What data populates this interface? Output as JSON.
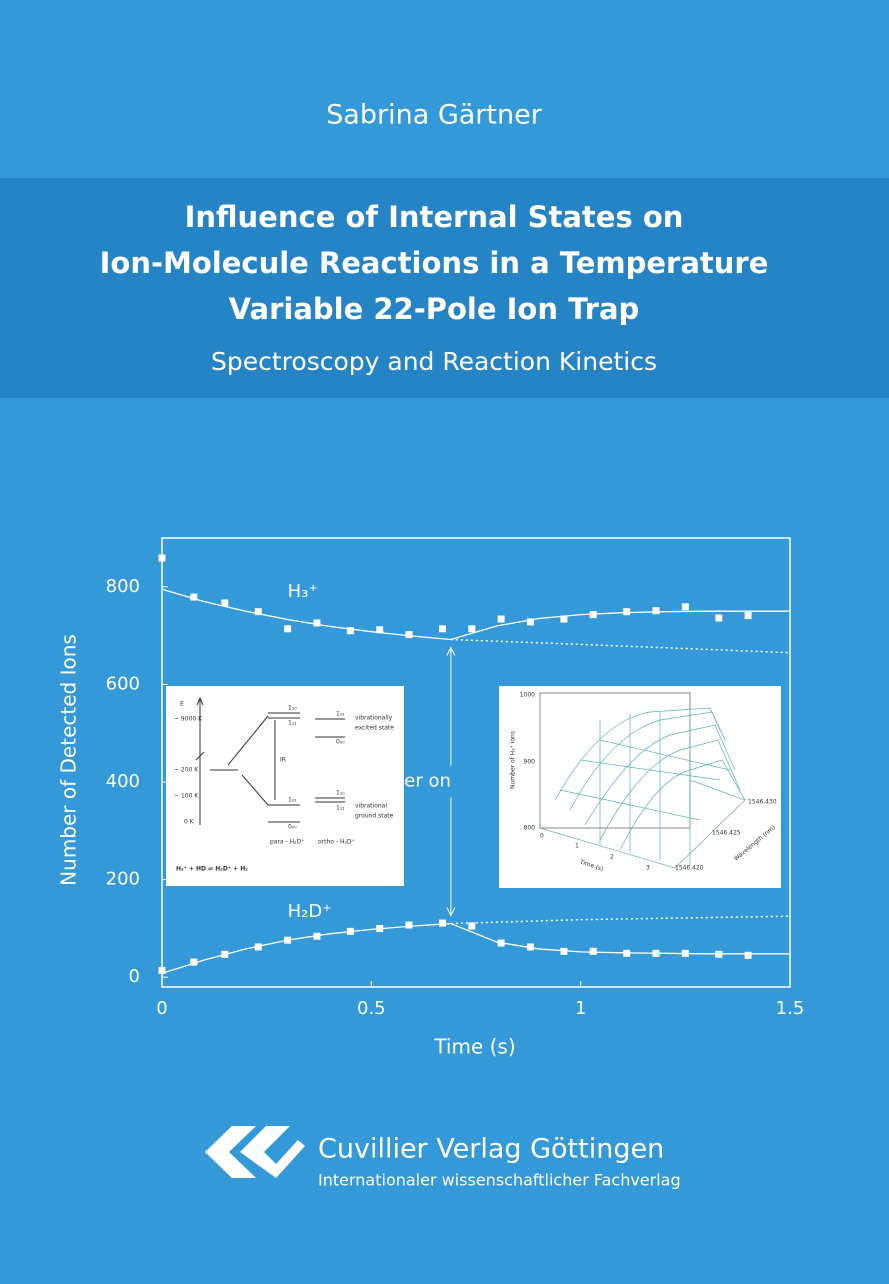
{
  "author": "Sabrina Gärtner",
  "title": [
    "Influence of Internal States on",
    "Ion-Molecule Reactions in a Temperature",
    "Variable 22-Pole Ion Trap"
  ],
  "subtitle": "Spectroscopy and Reaction Kinetics",
  "chart_data": {
    "type": "scatter",
    "xlabel": "Time (s)",
    "ylabel": "Number of Detected Ions",
    "xlim": [
      0,
      1.5
    ],
    "ylim": [
      -20,
      900
    ],
    "xticks": [
      0,
      0.5,
      1,
      1.5
    ],
    "yticks": [
      0,
      200,
      400,
      600,
      800
    ],
    "series": [
      {
        "name": "H₃⁺",
        "color": "#ffffff",
        "x": [
          0,
          0.076,
          0.15,
          0.23,
          0.3,
          0.37,
          0.45,
          0.52,
          0.59,
          0.67,
          0.74,
          0.81,
          0.88,
          0.96,
          1.03,
          1.11,
          1.18,
          1.25,
          1.33,
          1.4
        ],
        "values": [
          859,
          779,
          767,
          749,
          714,
          726,
          710,
          712,
          702,
          714,
          714,
          734,
          728,
          734,
          743,
          749,
          751,
          759,
          736,
          741
        ]
      },
      {
        "name": "H₂D⁺",
        "color": "#ffffff",
        "x": [
          0,
          0.076,
          0.15,
          0.23,
          0.3,
          0.37,
          0.45,
          0.52,
          0.59,
          0.67,
          0.74,
          0.81,
          0.88,
          0.96,
          1.03,
          1.11,
          1.18,
          1.25,
          1.33,
          1.4
        ],
        "values": [
          14,
          31,
          47,
          62,
          76,
          84,
          94,
          100,
          107,
          111,
          105,
          70,
          62,
          53,
          53,
          49,
          49,
          49,
          47,
          45
        ]
      }
    ],
    "fits": [
      {
        "style": "solid",
        "x": [
          0,
          0.1,
          0.2,
          0.3,
          0.4,
          0.5,
          0.6,
          0.69
        ],
        "values": [
          795,
          770,
          750,
          733,
          719,
          708,
          699,
          692
        ]
      },
      {
        "style": "solid",
        "x": [
          0.69,
          0.8,
          0.9,
          1.0,
          1.1,
          1.2,
          1.3,
          1.4,
          1.5
        ],
        "values": [
          692,
          720,
          735,
          743,
          747,
          749,
          750,
          750,
          750
        ]
      },
      {
        "style": "dotted",
        "x": [
          0.69,
          1.0,
          1.5
        ],
        "values": [
          692,
          682,
          665
        ]
      },
      {
        "style": "solid",
        "x": [
          0,
          0.1,
          0.2,
          0.3,
          0.4,
          0.5,
          0.6,
          0.69
        ],
        "values": [
          8,
          35,
          58,
          76,
          89,
          98,
          105,
          110
        ]
      },
      {
        "style": "solid",
        "x": [
          0.69,
          0.8,
          0.9,
          1.0,
          1.1,
          1.2,
          1.3,
          1.4,
          1.5
        ],
        "values": [
          110,
          72,
          58,
          52,
          50,
          49,
          48,
          48,
          48
        ]
      },
      {
        "style": "dotted",
        "x": [
          0.69,
          1.0,
          1.5
        ],
        "values": [
          110,
          118,
          125
        ]
      }
    ],
    "laser": {
      "label": "Laser on",
      "x": 0.69
    }
  },
  "inset_left": {
    "e": "E",
    "temps": [
      "~ 9000 K",
      "~ 200 K",
      "~ 100 K",
      "0 K"
    ],
    "ir": "IR",
    "para_levels": [
      "1₁₀",
      "1₁₁",
      "1₀₁",
      "0₀₀"
    ],
    "ortho_levels": [
      "1₀₁",
      "0₀₀",
      "1₁₀",
      "1₁₁"
    ],
    "excited": [
      "vibrationally",
      "excited state"
    ],
    "ground": [
      "vibrational",
      "ground state"
    ],
    "para": "para - H₂D⁺",
    "ortho": "ortho - H₂D⁺",
    "reaction": "H₃⁺ + HD ⇌ H₂D⁺ + H₂"
  },
  "inset_right": {
    "yticks": [
      "1000",
      "900",
      "800"
    ],
    "ylabel": "Number of H₃⁺ ions",
    "xticks": [
      "0",
      "1",
      "2",
      "3"
    ],
    "xlabel": "Time (s)",
    "wticks": [
      "1546.430",
      "1546.425",
      "1546.420"
    ],
    "wlabel": "Wavelength (nm)"
  },
  "publisher": {
    "name": "Cuvillier Verlag Göttingen",
    "tagline": "Internationaler wissenschaftlicher Fachverlag"
  }
}
